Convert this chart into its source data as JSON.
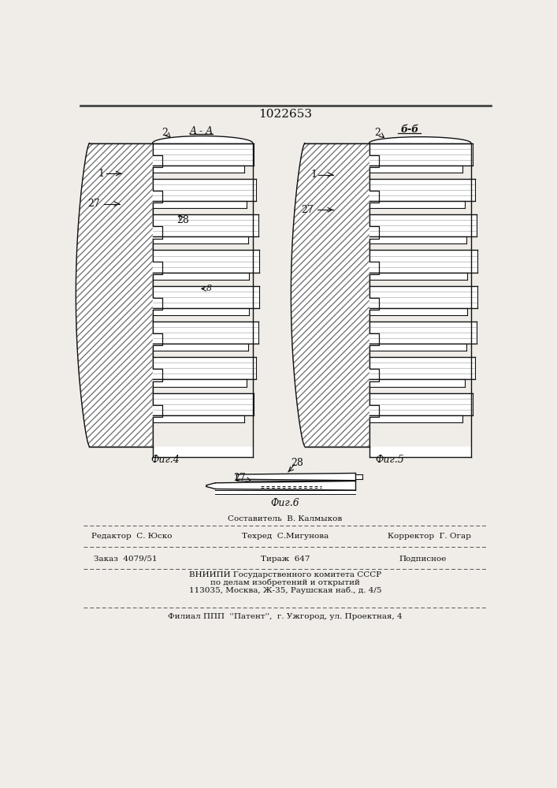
{
  "title": "1022653",
  "bg_color": "#f0ede8",
  "line_color": "#111111",
  "fig4_label": "Фиг.4",
  "fig5_label": "Фиг.5",
  "fig6_label": "Фиг.6",
  "section_aa": "A-A",
  "section_bb": "б-б",
  "label_1": "1",
  "label_2": "2",
  "label_27": "27",
  "label_28": "28",
  "label_8": "8",
  "footer_line1": "Составитель  В. Калмыков",
  "footer_line2_left": "Редактор  С. Юско",
  "footer_line2_mid": "Техред  С.Мигунова",
  "footer_line2_right": "Корректор  Г. Огар",
  "footer_line3_left": "Заказ  4079/51",
  "footer_line3_mid": "Тираж  647",
  "footer_line3_right": "Подписное",
  "footer_line4": "ВНИИПИ Государственного комитета СССР",
  "footer_line5": "по делам изобретений и открытий",
  "footer_line6": "113035, Москва, Ж-35, Раушская наб., д. 4/5",
  "footer_line7": "Филиал ППП  ''Патент'',  г. Ужгород, ул. Проектная, 4"
}
